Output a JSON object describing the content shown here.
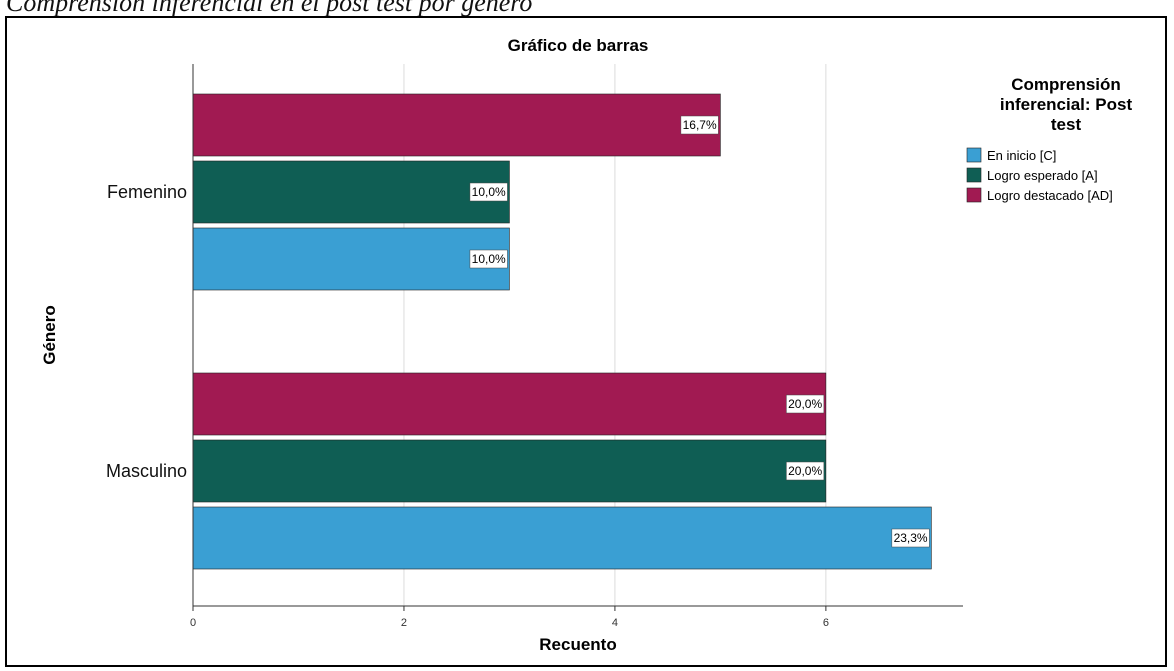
{
  "caption": "Comprensión inferencial en el post test por género",
  "colors": {
    "en_inicio": "#3a9fd3",
    "logro_esperado": "#0f5e54",
    "logro_destacado": "#a11a52",
    "gridline": "#dcdcdc"
  },
  "chart_data": {
    "type": "bar",
    "orientation": "horizontal",
    "title": "Gráfico de barras",
    "xlabel": "Recuento",
    "ylabel": "Género",
    "xlim": [
      0,
      7.3
    ],
    "xticks": [
      "0",
      "2",
      "4",
      "6"
    ],
    "grid": true,
    "legend_position": "right",
    "legend_title": [
      "Comprensión",
      "inferencial: Post",
      "test"
    ],
    "categories": [
      "Femenino",
      "Masculino"
    ],
    "series": [
      {
        "name": "En inicio [C]",
        "values": [
          3,
          7
        ],
        "labels": [
          "10,0%",
          "23,3%"
        ],
        "color": "#3a9fd3"
      },
      {
        "name": "Logro esperado [A]",
        "values": [
          3,
          6
        ],
        "labels": [
          "10,0%",
          "20,0%"
        ],
        "color": "#0f5e54"
      },
      {
        "name": "Logro destacado [AD]",
        "values": [
          5,
          6
        ],
        "labels": [
          "16,7%",
          "20,0%"
        ],
        "color": "#a11a52"
      }
    ]
  }
}
